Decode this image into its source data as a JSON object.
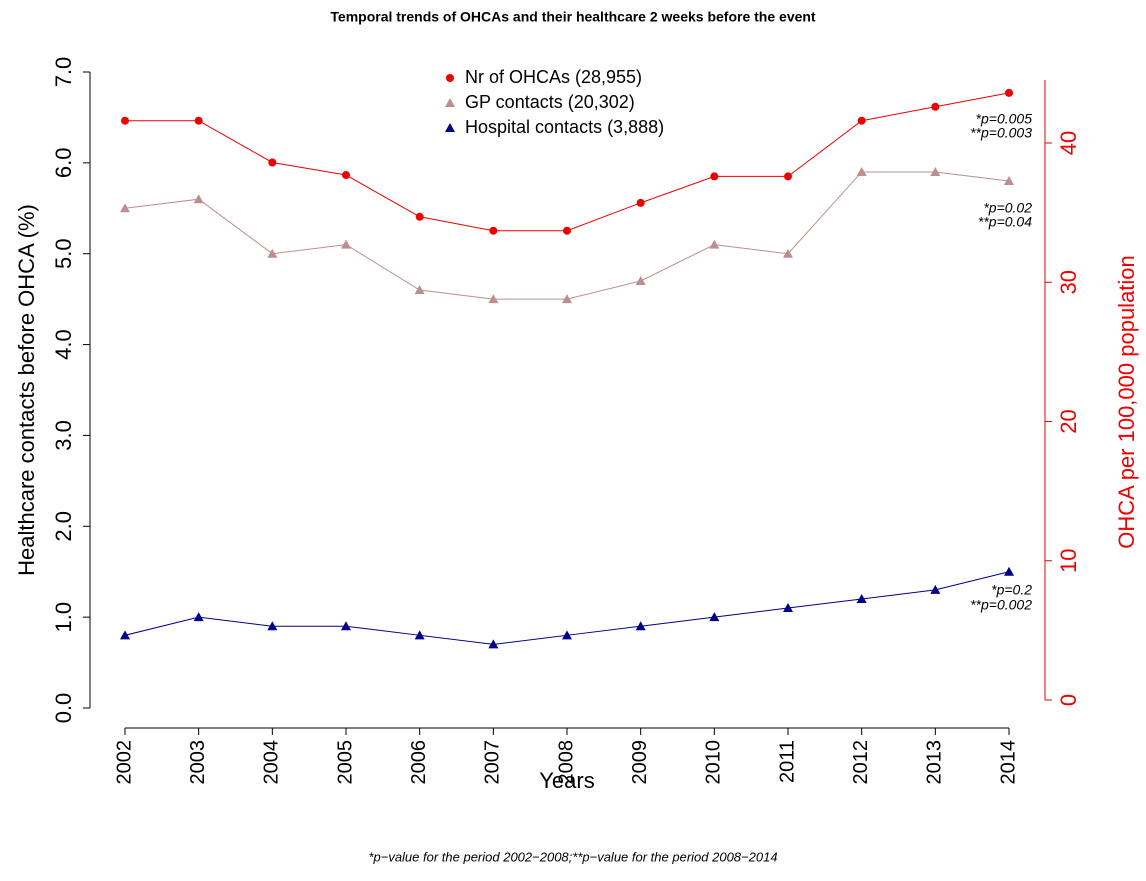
{
  "chart_data": {
    "type": "line",
    "title": "Temporal trends of OHCAs and their healthcare 2 weeks before the event",
    "xlabel": "Years",
    "ylabel": "Healthcare contacts before OHCA (%)",
    "y2label": "OHCA per 100,000 population",
    "footnote": "*p−value for the period 2002−2008;**p−value for the period 2008−2014",
    "categories": [
      "2002",
      "2003",
      "2004",
      "2005",
      "2006",
      "2007",
      "2008",
      "2009",
      "2010",
      "2011",
      "2012",
      "2013",
      "2014"
    ],
    "series": [
      {
        "name": "Nr of OHCAs (28,955)",
        "color": "#ee0000",
        "marker": "circle",
        "axis": "y2",
        "values": [
          41.6,
          41.6,
          38.6,
          37.7,
          34.7,
          33.7,
          33.7,
          35.7,
          37.6,
          37.6,
          41.6,
          42.6,
          43.6
        ]
      },
      {
        "name": "GP contacts (20,302)",
        "color": "#bc8f8f",
        "marker": "triangle",
        "values": [
          5.5,
          5.6,
          5.0,
          5.1,
          4.6,
          4.5,
          4.5,
          4.7,
          5.1,
          5.0,
          5.9,
          5.9,
          5.8
        ]
      },
      {
        "name": "Hospital contacts (3,888)",
        "color": "#00008b",
        "marker": "triangle",
        "values": [
          0.8,
          1.0,
          0.9,
          0.9,
          0.8,
          0.7,
          0.8,
          0.9,
          1.0,
          1.1,
          1.2,
          1.3,
          1.5
        ]
      }
    ],
    "ylim": [
      0,
      7
    ],
    "yticks": [
      {
        "value": 0,
        "label": "0.0"
      },
      {
        "value": 1,
        "label": "1.0"
      },
      {
        "value": 2,
        "label": "2.0"
      },
      {
        "value": 3,
        "label": "3.0"
      },
      {
        "value": 4,
        "label": "4.0"
      },
      {
        "value": 5,
        "label": "5.0"
      },
      {
        "value": 6,
        "label": "6.0"
      },
      {
        "value": 7,
        "label": "7.0"
      }
    ],
    "y2lim": [
      0,
      40
    ],
    "y2ticks": [
      0,
      10,
      20,
      30,
      40
    ],
    "y2color": "#ee0000",
    "annotations": [
      "*p=0.005",
      "**p=0.003",
      "*p=0.02",
      "**p=0.04",
      "*p=0.2",
      "**p=0.002"
    ]
  }
}
